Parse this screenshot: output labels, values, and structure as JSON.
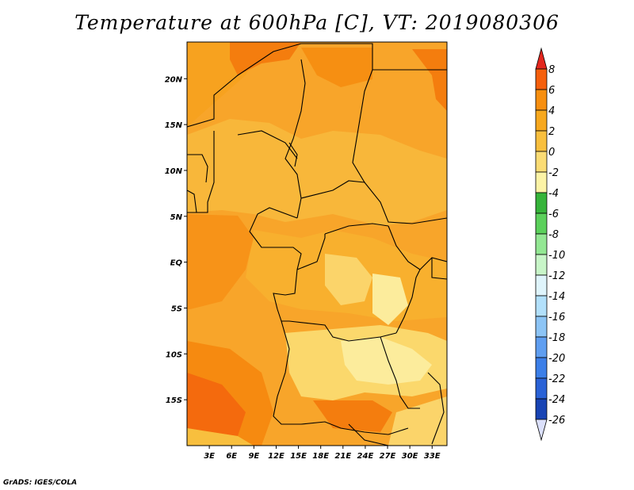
{
  "title": "Temperature at 600hPa [C], VT: 2019080306",
  "credit": "GrADS: IGES/COLA",
  "chart_data": {
    "type": "heatmap",
    "title": "Temperature at 600hPa [C], VT: 2019080306",
    "variable": "Temperature",
    "level": "600hPa",
    "units": "C",
    "valid_time": "2019080306",
    "lon_range": [
      0,
      35
    ],
    "lat_range": [
      -20,
      24
    ],
    "x_ticks": [
      {
        "value": 3,
        "label": "3E"
      },
      {
        "value": 6,
        "label": "6E"
      },
      {
        "value": 9,
        "label": "9E"
      },
      {
        "value": 12,
        "label": "12E"
      },
      {
        "value": 15,
        "label": "15E"
      },
      {
        "value": 18,
        "label": "18E"
      },
      {
        "value": 21,
        "label": "21E"
      },
      {
        "value": 24,
        "label": "24E"
      },
      {
        "value": 27,
        "label": "27E"
      },
      {
        "value": 30,
        "label": "30E"
      },
      {
        "value": 33,
        "label": "33E"
      }
    ],
    "y_ticks": [
      {
        "value": 20,
        "label": "20N"
      },
      {
        "value": 15,
        "label": "15N"
      },
      {
        "value": 10,
        "label": "10N"
      },
      {
        "value": 5,
        "label": "5N"
      },
      {
        "value": 0,
        "label": "EQ"
      },
      {
        "value": -5,
        "label": "5S"
      },
      {
        "value": -10,
        "label": "10S"
      },
      {
        "value": -15,
        "label": "15S"
      }
    ],
    "colorbar": {
      "levels": [
        8,
        6,
        4,
        2,
        0,
        -2,
        -4,
        -6,
        -8,
        -10,
        -12,
        -14,
        -16,
        -18,
        -20,
        -22,
        -24,
        -26
      ],
      "labels": [
        "8",
        "6",
        "4",
        "2",
        "0",
        "-2",
        "-4",
        "-6",
        "-8",
        "-10",
        "-12",
        "-14",
        "-16",
        "-18",
        "-20",
        "-22",
        "-24",
        "-26"
      ],
      "colors": [
        "#e8330c",
        "#f55f0c",
        "#f78f10",
        "#f7a81e",
        "#f8bf3e",
        "#fbdc74",
        "#fcf3a6",
        "#36b43a",
        "#5bd05b",
        "#93e793",
        "#c8f5c8",
        "#dff4fb",
        "#b2e0fb",
        "#8cc4f5",
        "#5f9ef0",
        "#3c7fe8",
        "#2a62d6",
        "#1844b4",
        "#0c1d82"
      ],
      "top_triangle_color": "#e3271e",
      "bottom_triangle_color": "#dbe0fb"
    }
  }
}
